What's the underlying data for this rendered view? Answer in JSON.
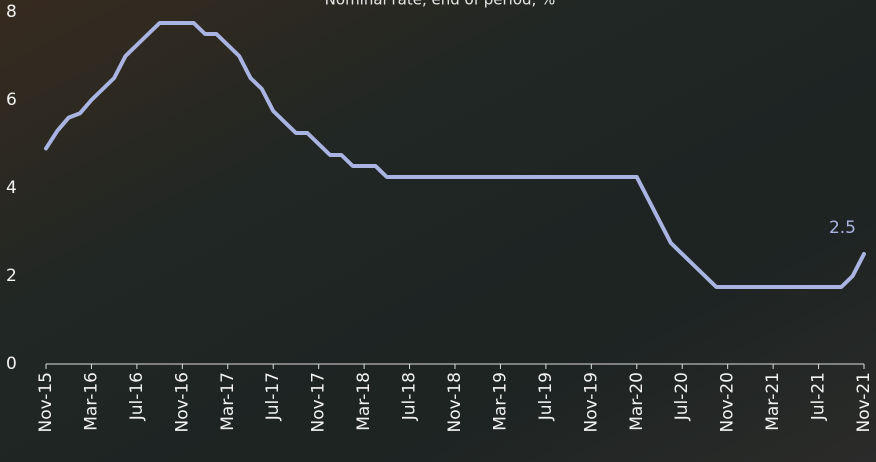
{
  "chart_data": {
    "type": "line",
    "subtitle": "Nominal rate, end of period, %",
    "categories": [
      "Nov-15",
      null,
      null,
      null,
      "Mar-16",
      null,
      null,
      null,
      "Jul-16",
      null,
      null,
      null,
      "Nov-16",
      null,
      null,
      null,
      "Mar-17",
      null,
      null,
      null,
      "Jul-17",
      null,
      null,
      null,
      "Nov-17",
      null,
      null,
      null,
      "Mar-18",
      null,
      null,
      null,
      "Jul-18",
      null,
      null,
      null,
      "Nov-18",
      null,
      null,
      null,
      "Mar-19",
      null,
      null,
      null,
      "Jul-19",
      null,
      null,
      null,
      "Nov-19",
      null,
      null,
      null,
      "Mar-20",
      null,
      null,
      null,
      "Jul-20",
      null,
      null,
      null,
      "Nov-20",
      null,
      null,
      null,
      "Mar-21",
      null,
      null,
      null,
      "Jul-21",
      null,
      null,
      null,
      "Nov-21"
    ],
    "series": [
      {
        "color": "#aab4e2",
        "values": [
          4.9,
          5.3,
          5.6,
          5.7,
          6.0,
          6.25,
          6.5,
          7.0,
          7.25,
          7.5,
          7.75,
          7.75,
          7.75,
          7.75,
          7.5,
          7.5,
          7.25,
          7.0,
          6.5,
          6.25,
          5.75,
          5.5,
          5.25,
          5.25,
          5.0,
          4.75,
          4.75,
          4.5,
          4.5,
          4.5,
          4.25,
          4.25,
          4.25,
          4.25,
          4.25,
          4.25,
          4.25,
          4.25,
          4.25,
          4.25,
          4.25,
          4.25,
          4.25,
          4.25,
          4.25,
          4.25,
          4.25,
          4.25,
          4.25,
          4.25,
          4.25,
          4.25,
          4.25,
          3.75,
          3.25,
          2.75,
          2.5,
          2.25,
          2.0,
          1.75,
          1.75,
          1.75,
          1.75,
          1.75,
          1.75,
          1.75,
          1.75,
          1.75,
          1.75,
          1.75,
          1.75,
          2.0,
          2.5
        ]
      }
    ],
    "ylim": [
      0,
      8
    ],
    "yticks": [
      0,
      2,
      4,
      6,
      8
    ],
    "grid": false,
    "end_label": true
  }
}
